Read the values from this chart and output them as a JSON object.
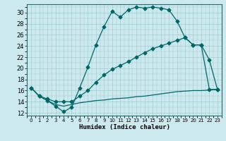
{
  "xlabel": "Humidex (Indice chaleur)",
  "bg_color": "#cde9f0",
  "grid_color": "#a0cccc",
  "line_color": "#006666",
  "xlim": [
    -0.5,
    23.5
  ],
  "ylim": [
    11.5,
    31.5
  ],
  "xticks": [
    0,
    1,
    2,
    3,
    4,
    5,
    6,
    7,
    8,
    9,
    10,
    11,
    12,
    13,
    14,
    15,
    16,
    17,
    18,
    19,
    20,
    21,
    22,
    23
  ],
  "yticks": [
    12,
    14,
    16,
    18,
    20,
    22,
    24,
    26,
    28,
    30
  ],
  "line1_x": [
    0,
    1,
    2,
    3,
    4,
    5,
    6,
    7,
    8,
    9,
    10,
    11,
    12,
    13,
    14,
    15,
    16,
    17,
    18,
    19,
    20,
    21,
    22,
    23
  ],
  "line1_y": [
    16.5,
    15.0,
    14.2,
    13.2,
    12.2,
    13.0,
    16.5,
    20.2,
    24.2,
    27.5,
    30.2,
    29.2,
    30.5,
    31.0,
    30.8,
    31.0,
    30.8,
    30.5,
    28.5,
    25.5,
    24.2,
    24.2,
    21.5,
    16.2
  ],
  "line2_x": [
    0,
    1,
    2,
    3,
    4,
    5,
    6,
    7,
    8,
    9,
    10,
    11,
    12,
    13,
    14,
    15,
    16,
    17,
    18,
    19,
    20,
    21,
    22,
    23
  ],
  "line2_y": [
    16.5,
    15.0,
    14.5,
    14.0,
    14.0,
    14.0,
    15.0,
    16.0,
    17.5,
    18.8,
    19.8,
    20.5,
    21.2,
    22.0,
    22.8,
    23.5,
    24.0,
    24.5,
    25.0,
    25.5,
    24.2,
    24.2,
    16.2,
    16.2
  ],
  "line3_x": [
    0,
    1,
    2,
    3,
    4,
    5,
    6,
    7,
    8,
    9,
    10,
    11,
    12,
    13,
    14,
    15,
    16,
    17,
    18,
    19,
    20,
    21,
    22,
    23
  ],
  "line3_y": [
    16.5,
    15.0,
    14.2,
    13.5,
    13.2,
    13.5,
    13.8,
    14.0,
    14.2,
    14.3,
    14.5,
    14.6,
    14.7,
    14.9,
    15.0,
    15.2,
    15.4,
    15.6,
    15.8,
    15.9,
    16.0,
    16.0,
    16.1,
    16.2
  ]
}
